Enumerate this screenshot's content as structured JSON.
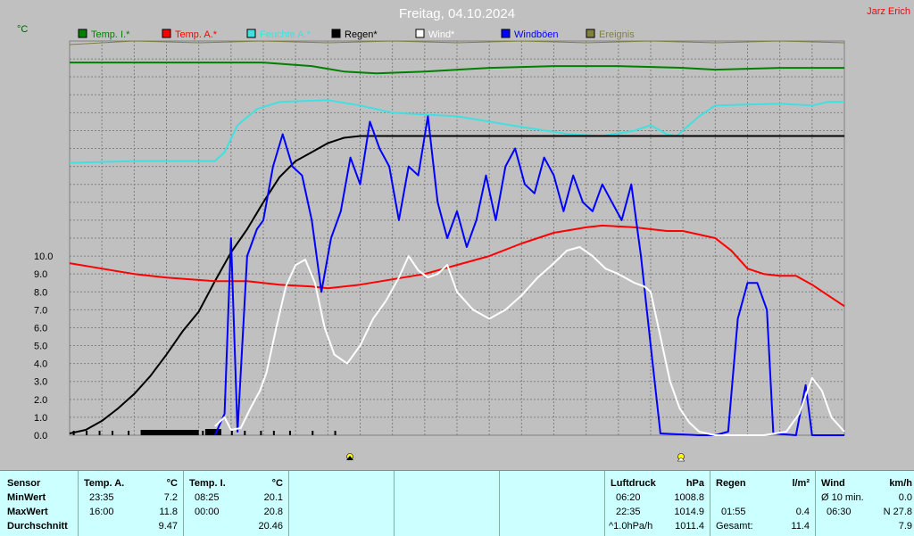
{
  "header": {
    "title": "Freitag, 04.10.2024",
    "author": "Jarz Erich",
    "unit": "°C"
  },
  "colors": {
    "bg": "#c0c0c0",
    "grid": "#808080",
    "temp_i": "#008000",
    "temp_a": "#ff0000",
    "feuchte_a": "#40e0e0",
    "regen": "#000000",
    "wind": "#ffffff",
    "windboeen": "#0000ff",
    "ereignis": "#808040",
    "table_bg": "#ccffff"
  },
  "legend": [
    {
      "label": "Temp. I.*",
      "color": "#008000"
    },
    {
      "label": "Temp. A.*",
      "color": "#ff0000"
    },
    {
      "label": "Feuchte A.*",
      "color": "#40e0e0"
    },
    {
      "label": "Regen*",
      "color": "#000000"
    },
    {
      "label": "Wind*",
      "color": "#ffffff"
    },
    {
      "label": "Windböen",
      "color": "#0000ff"
    },
    {
      "label": "Ereignis",
      "color": "#808040"
    }
  ],
  "chart_data": {
    "type": "line",
    "title": "Freitag, 04.10.2024",
    "ylabel": "°C",
    "ylim": [
      0,
      22
    ],
    "x_range": [
      0,
      24
    ],
    "grid": true,
    "legend_position": "top",
    "y_ticks": [
      "0.0",
      "1.0",
      "2.0",
      "3.0",
      "4.0",
      "5.0",
      "6.0",
      "7.0",
      "8.0",
      "9.0",
      "10.0"
    ],
    "series": [
      {
        "name": "Temp. I.*",
        "color": "#008000",
        "points": [
          [
            0,
            20.8
          ],
          [
            3,
            20.8
          ],
          [
            6,
            20.8
          ],
          [
            7.5,
            20.6
          ],
          [
            8.5,
            20.3
          ],
          [
            9.5,
            20.2
          ],
          [
            11,
            20.3
          ],
          [
            13,
            20.5
          ],
          [
            15,
            20.6
          ],
          [
            17,
            20.6
          ],
          [
            19,
            20.5
          ],
          [
            20,
            20.4
          ],
          [
            22,
            20.5
          ],
          [
            24,
            20.5
          ]
        ]
      },
      {
        "name": "Temp. A.*",
        "color": "#ff0000",
        "points": [
          [
            0,
            9.6
          ],
          [
            1,
            9.3
          ],
          [
            2,
            9.0
          ],
          [
            3,
            8.8
          ],
          [
            4.5,
            8.6
          ],
          [
            5.5,
            8.6
          ],
          [
            6.5,
            8.4
          ],
          [
            7.5,
            8.3
          ],
          [
            8,
            8.2
          ],
          [
            9,
            8.4
          ],
          [
            10,
            8.7
          ],
          [
            11,
            9.0
          ],
          [
            12,
            9.5
          ],
          [
            13,
            10.0
          ],
          [
            14,
            10.7
          ],
          [
            15,
            11.3
          ],
          [
            16,
            11.6
          ],
          [
            16.5,
            11.7
          ],
          [
            17.5,
            11.6
          ],
          [
            18.5,
            11.4
          ],
          [
            19,
            11.4
          ],
          [
            20,
            11.0
          ],
          [
            20.5,
            10.3
          ],
          [
            21,
            9.3
          ],
          [
            21.5,
            9.0
          ],
          [
            22,
            8.9
          ],
          [
            22.5,
            8.9
          ],
          [
            23,
            8.4
          ],
          [
            23.5,
            7.8
          ],
          [
            24,
            7.2
          ]
        ]
      },
      {
        "name": "Feuchte A.*",
        "color": "#40e0e0",
        "points": [
          [
            0,
            15.2
          ],
          [
            2,
            15.3
          ],
          [
            4.5,
            15.3
          ],
          [
            4.8,
            15.8
          ],
          [
            5.2,
            17.3
          ],
          [
            5.8,
            18.2
          ],
          [
            6.5,
            18.6
          ],
          [
            8,
            18.7
          ],
          [
            9,
            18.4
          ],
          [
            10,
            18.0
          ],
          [
            12,
            17.8
          ],
          [
            14,
            17.2
          ],
          [
            15.5,
            16.8
          ],
          [
            16.5,
            16.7
          ],
          [
            17.5,
            17.0
          ],
          [
            18,
            17.3
          ],
          [
            18.5,
            16.8
          ],
          [
            18.8,
            16.7
          ],
          [
            19.5,
            17.8
          ],
          [
            20,
            18.4
          ],
          [
            22,
            18.5
          ],
          [
            23,
            18.4
          ],
          [
            23.5,
            18.6
          ],
          [
            24,
            18.6
          ]
        ]
      },
      {
        "name": "Regen*",
        "color": "#000000",
        "points": [
          [
            0,
            0.1
          ],
          [
            0.5,
            0.3
          ],
          [
            1,
            0.8
          ],
          [
            1.5,
            1.5
          ],
          [
            2,
            2.3
          ],
          [
            2.5,
            3.3
          ],
          [
            3,
            4.5
          ],
          [
            3.5,
            5.8
          ],
          [
            4,
            6.9
          ],
          [
            4.5,
            8.6
          ],
          [
            5,
            10.2
          ],
          [
            5.5,
            11.5
          ],
          [
            6,
            13.0
          ],
          [
            6.5,
            14.4
          ],
          [
            7,
            15.3
          ],
          [
            7.5,
            15.8
          ],
          [
            8,
            16.3
          ],
          [
            8.5,
            16.6
          ],
          [
            9,
            16.7
          ],
          [
            12,
            16.7
          ],
          [
            18,
            16.7
          ],
          [
            24,
            16.7
          ]
        ]
      },
      {
        "name": "Wind*",
        "color": "#ffffff",
        "points": [
          [
            4.5,
            0.5
          ],
          [
            4.8,
            1.0
          ],
          [
            5.0,
            0.3
          ],
          [
            5.3,
            0.4
          ],
          [
            5.6,
            1.5
          ],
          [
            5.9,
            2.5
          ],
          [
            6.1,
            3.5
          ],
          [
            6.4,
            6.0
          ],
          [
            6.7,
            8.3
          ],
          [
            7,
            9.5
          ],
          [
            7.3,
            9.8
          ],
          [
            7.6,
            8.5
          ],
          [
            7.9,
            6.0
          ],
          [
            8.2,
            4.5
          ],
          [
            8.6,
            4.0
          ],
          [
            9,
            5.0
          ],
          [
            9.4,
            6.5
          ],
          [
            9.8,
            7.5
          ],
          [
            10.2,
            8.8
          ],
          [
            10.5,
            10.0
          ],
          [
            10.8,
            9.2
          ],
          [
            11.1,
            8.8
          ],
          [
            11.4,
            9.0
          ],
          [
            11.7,
            9.5
          ],
          [
            12,
            8.0
          ],
          [
            12.5,
            7.0
          ],
          [
            13,
            6.5
          ],
          [
            13.5,
            7.0
          ],
          [
            14,
            7.8
          ],
          [
            14.5,
            8.8
          ],
          [
            15,
            9.6
          ],
          [
            15.4,
            10.3
          ],
          [
            15.8,
            10.5
          ],
          [
            16.2,
            10.0
          ],
          [
            16.6,
            9.3
          ],
          [
            17,
            9.0
          ],
          [
            17.5,
            8.5
          ],
          [
            17.8,
            8.3
          ],
          [
            18,
            8.0
          ],
          [
            18.3,
            5.5
          ],
          [
            18.6,
            3.0
          ],
          [
            18.9,
            1.5
          ],
          [
            19.2,
            0.7
          ],
          [
            19.5,
            0.2
          ],
          [
            20,
            0.0
          ],
          [
            21,
            0.0
          ],
          [
            21.5,
            0.0
          ],
          [
            22.2,
            0.2
          ],
          [
            22.6,
            1.2
          ],
          [
            23,
            3.2
          ],
          [
            23.3,
            2.5
          ],
          [
            23.6,
            1.0
          ],
          [
            24,
            0.2
          ]
        ]
      },
      {
        "name": "Windböen",
        "color": "#0000ff",
        "points": [
          [
            4.5,
            0.0
          ],
          [
            4.8,
            1.2
          ],
          [
            5.0,
            11.0
          ],
          [
            5.2,
            0.2
          ],
          [
            5.5,
            10.0
          ],
          [
            5.8,
            11.5
          ],
          [
            6.0,
            12.0
          ],
          [
            6.3,
            15.0
          ],
          [
            6.6,
            16.8
          ],
          [
            6.9,
            15.0
          ],
          [
            7.2,
            14.5
          ],
          [
            7.5,
            12.0
          ],
          [
            7.8,
            8.0
          ],
          [
            8.1,
            11.0
          ],
          [
            8.4,
            12.5
          ],
          [
            8.7,
            15.5
          ],
          [
            9.0,
            14.0
          ],
          [
            9.3,
            17.5
          ],
          [
            9.6,
            16.0
          ],
          [
            9.9,
            15.0
          ],
          [
            10.2,
            12.0
          ],
          [
            10.5,
            15.0
          ],
          [
            10.8,
            14.5
          ],
          [
            11.1,
            17.8
          ],
          [
            11.4,
            13.0
          ],
          [
            11.7,
            11.0
          ],
          [
            12,
            12.5
          ],
          [
            12.3,
            10.5
          ],
          [
            12.6,
            12.0
          ],
          [
            12.9,
            14.5
          ],
          [
            13.2,
            12.0
          ],
          [
            13.5,
            15.0
          ],
          [
            13.8,
            16.0
          ],
          [
            14.1,
            14.0
          ],
          [
            14.4,
            13.5
          ],
          [
            14.7,
            15.5
          ],
          [
            15,
            14.5
          ],
          [
            15.3,
            12.5
          ],
          [
            15.6,
            14.5
          ],
          [
            15.9,
            13.0
          ],
          [
            16.2,
            12.5
          ],
          [
            16.5,
            14.0
          ],
          [
            16.8,
            13.0
          ],
          [
            17.1,
            12.0
          ],
          [
            17.4,
            14.0
          ],
          [
            17.7,
            10.0
          ],
          [
            18,
            5.0
          ],
          [
            18.3,
            0.1
          ],
          [
            19.5,
            0.0
          ],
          [
            20,
            0.0
          ],
          [
            20.4,
            0.2
          ],
          [
            20.7,
            6.5
          ],
          [
            21,
            8.5
          ],
          [
            21.3,
            8.5
          ],
          [
            21.6,
            7.0
          ],
          [
            21.8,
            0.1
          ],
          [
            22.5,
            0.0
          ],
          [
            22.8,
            2.8
          ],
          [
            23,
            0.0
          ],
          [
            24,
            0.0
          ]
        ]
      },
      {
        "name": "Ereignis",
        "color": "#808040",
        "points": [
          [
            0,
            21.8
          ],
          [
            2,
            22.0
          ],
          [
            4,
            21.9
          ],
          [
            6,
            22.0
          ],
          [
            8,
            21.9
          ],
          [
            10,
            22.0
          ],
          [
            12,
            21.9
          ],
          [
            14,
            22.0
          ],
          [
            16,
            21.9
          ],
          [
            18,
            22.0
          ],
          [
            20,
            21.9
          ],
          [
            22,
            22.0
          ],
          [
            24,
            21.9
          ]
        ]
      }
    ]
  },
  "table": {
    "row_labels": [
      "Sensor",
      "MinWert",
      "MaxWert",
      "Durchschnitt"
    ],
    "temp_a": {
      "header": "Temp. A.",
      "unit": "°C",
      "min_time": "23:35",
      "min": "7.2",
      "max_time": "16:00",
      "max": "11.8",
      "avg": "9.47"
    },
    "temp_i": {
      "header": "Temp. I.",
      "unit": "°C",
      "min_time": "08:25",
      "min": "20.1",
      "max_time": "00:00",
      "max": "20.8",
      "avg": "20.46"
    },
    "luftdruck": {
      "header": "Luftdruck",
      "unit": "hPa",
      "min_time": "06:20",
      "min": "1008.8",
      "max_time": "22:35",
      "max": "1014.9",
      "trend_label": "^1.0hPa/h",
      "avg": "1011.4"
    },
    "regen": {
      "header": "Regen",
      "unit": "l/m²",
      "max_time": "01:55",
      "max": "0.4",
      "total_label": "Gesamt:",
      "total": "11.4"
    },
    "wind": {
      "header": "Wind",
      "unit": "km/h",
      "avg10_label": "Ø 10 min.",
      "avg10": "0.0",
      "max_time": "06:30",
      "max": "N 27.8",
      "avg": "7.9"
    }
  }
}
